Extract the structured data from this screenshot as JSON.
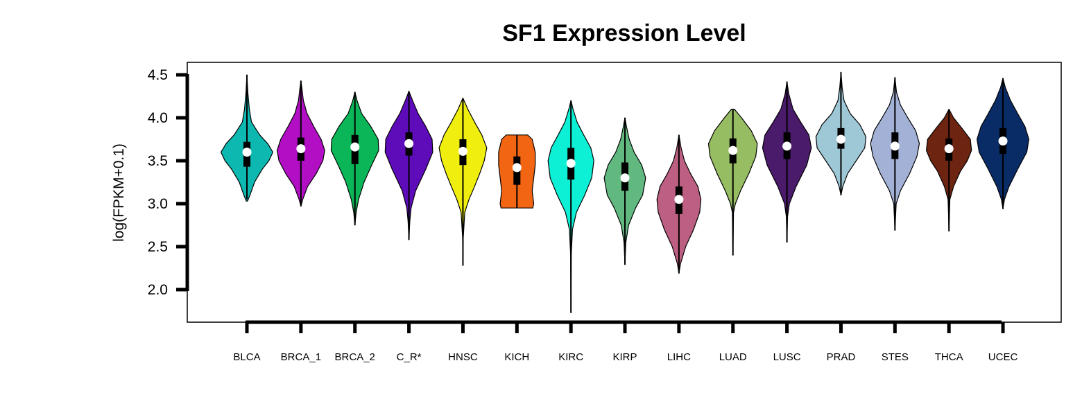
{
  "chart_data": {
    "type": "violin",
    "title": "SF1 Expression Level",
    "xlabel": "",
    "ylabel": "log(FPKM+0.1)",
    "ylim": [
      1.6,
      4.65
    ],
    "yticks": [
      "2.0",
      "2.5",
      "3.0",
      "3.5",
      "4.0",
      "4.5"
    ],
    "grid": false,
    "legend": "none",
    "categories": [
      "BLCA",
      "BRCA_1",
      "BRCA_2",
      "C_R*",
      "HNSC",
      "KICH",
      "KIRC",
      "KIRP",
      "LIHC",
      "LUAD",
      "LUSC",
      "PRAD",
      "STES",
      "THCA",
      "UCEC"
    ],
    "series": [
      {
        "color": "#0cb8b0",
        "min": 3.03,
        "max": 4.5,
        "q1": 3.43,
        "median": 3.6,
        "q3": 3.72,
        "whisker_low": 3.05,
        "whisker_high": 4.5,
        "density": [
          [
            3.03,
            0.02
          ],
          [
            3.1,
            0.1
          ],
          [
            3.25,
            0.25
          ],
          [
            3.4,
            0.5
          ],
          [
            3.5,
            0.72
          ],
          [
            3.6,
            0.85
          ],
          [
            3.7,
            0.68
          ],
          [
            3.8,
            0.42
          ],
          [
            3.95,
            0.15
          ],
          [
            4.1,
            0.08
          ],
          [
            4.3,
            0.03
          ],
          [
            4.5,
            0.0
          ]
        ]
      },
      {
        "color": "#b20fc5",
        "min": 2.97,
        "max": 4.43,
        "q1": 3.5,
        "median": 3.64,
        "q3": 3.77,
        "whisker_low": 2.97,
        "whisker_high": 4.43,
        "density": [
          [
            2.97,
            0.0
          ],
          [
            3.05,
            0.06
          ],
          [
            3.2,
            0.22
          ],
          [
            3.35,
            0.5
          ],
          [
            3.5,
            0.72
          ],
          [
            3.62,
            0.78
          ],
          [
            3.75,
            0.66
          ],
          [
            3.9,
            0.42
          ],
          [
            4.05,
            0.2
          ],
          [
            4.2,
            0.08
          ],
          [
            4.35,
            0.03
          ],
          [
            4.43,
            0.0
          ]
        ]
      },
      {
        "color": "#0bb658",
        "min": 2.75,
        "max": 4.3,
        "q1": 3.46,
        "median": 3.66,
        "q3": 3.8,
        "whisker_low": 2.75,
        "whisker_high": 4.3,
        "density": [
          [
            2.75,
            0.0
          ],
          [
            2.9,
            0.04
          ],
          [
            3.05,
            0.12
          ],
          [
            3.25,
            0.3
          ],
          [
            3.45,
            0.55
          ],
          [
            3.62,
            0.78
          ],
          [
            3.75,
            0.76
          ],
          [
            3.9,
            0.52
          ],
          [
            4.05,
            0.22
          ],
          [
            4.2,
            0.07
          ],
          [
            4.3,
            0.0
          ]
        ]
      },
      {
        "color": "#5e0cba",
        "min": 2.58,
        "max": 4.31,
        "q1": 3.56,
        "median": 3.7,
        "q3": 3.83,
        "whisker_low": 2.58,
        "whisker_high": 4.31,
        "density": [
          [
            2.58,
            0.0
          ],
          [
            2.8,
            0.03
          ],
          [
            2.95,
            0.07
          ],
          [
            3.15,
            0.22
          ],
          [
            3.4,
            0.55
          ],
          [
            3.6,
            0.78
          ],
          [
            3.75,
            0.76
          ],
          [
            3.9,
            0.55
          ],
          [
            4.05,
            0.3
          ],
          [
            4.2,
            0.12
          ],
          [
            4.31,
            0.0
          ]
        ]
      },
      {
        "color": "#f0ee0e",
        "min": 2.28,
        "max": 4.23,
        "q1": 3.45,
        "median": 3.61,
        "q3": 3.75,
        "whisker_low": 2.28,
        "whisker_high": 4.23,
        "density": [
          [
            2.28,
            0.0
          ],
          [
            2.6,
            0.01
          ],
          [
            2.9,
            0.06
          ],
          [
            3.05,
            0.2
          ],
          [
            3.2,
            0.38
          ],
          [
            3.35,
            0.55
          ],
          [
            3.5,
            0.7
          ],
          [
            3.65,
            0.78
          ],
          [
            3.8,
            0.62
          ],
          [
            3.95,
            0.38
          ],
          [
            4.1,
            0.16
          ],
          [
            4.23,
            0.0
          ]
        ]
      },
      {
        "color": "#f26512",
        "min": 2.95,
        "max": 3.8,
        "q1": 3.22,
        "median": 3.42,
        "q3": 3.55,
        "whisker_low": 2.95,
        "whisker_high": 3.8,
        "density": [
          [
            2.95,
            0.52
          ],
          [
            3.0,
            0.55
          ],
          [
            3.15,
            0.5
          ],
          [
            3.3,
            0.55
          ],
          [
            3.45,
            0.6
          ],
          [
            3.6,
            0.6
          ],
          [
            3.75,
            0.5
          ],
          [
            3.8,
            0.35
          ]
        ]
      },
      {
        "color": "#0ef0d6",
        "min": 1.73,
        "max": 4.2,
        "q1": 3.28,
        "median": 3.47,
        "q3": 3.65,
        "whisker_low": 1.73,
        "whisker_high": 4.2,
        "density": [
          [
            1.73,
            0.0
          ],
          [
            2.4,
            0.01
          ],
          [
            2.7,
            0.05
          ],
          [
            2.9,
            0.18
          ],
          [
            3.1,
            0.45
          ],
          [
            3.3,
            0.68
          ],
          [
            3.5,
            0.75
          ],
          [
            3.65,
            0.65
          ],
          [
            3.8,
            0.42
          ],
          [
            3.95,
            0.2
          ],
          [
            4.1,
            0.07
          ],
          [
            4.2,
            0.0
          ]
        ]
      },
      {
        "color": "#62b980",
        "min": 2.29,
        "max": 4.0,
        "q1": 3.15,
        "median": 3.3,
        "q3": 3.48,
        "whisker_low": 2.29,
        "whisker_high": 4.0,
        "density": [
          [
            2.29,
            0.0
          ],
          [
            2.55,
            0.03
          ],
          [
            2.75,
            0.12
          ],
          [
            2.95,
            0.35
          ],
          [
            3.1,
            0.58
          ],
          [
            3.3,
            0.68
          ],
          [
            3.45,
            0.55
          ],
          [
            3.6,
            0.3
          ],
          [
            3.75,
            0.14
          ],
          [
            3.9,
            0.05
          ],
          [
            4.0,
            0.0
          ]
        ]
      },
      {
        "color": "#bc5f82",
        "min": 2.19,
        "max": 3.8,
        "q1": 2.88,
        "median": 3.05,
        "q3": 3.2,
        "whisker_low": 2.19,
        "whisker_high": 3.8,
        "density": [
          [
            2.19,
            0.0
          ],
          [
            2.3,
            0.05
          ],
          [
            2.5,
            0.22
          ],
          [
            2.7,
            0.48
          ],
          [
            2.9,
            0.68
          ],
          [
            3.05,
            0.72
          ],
          [
            3.2,
            0.62
          ],
          [
            3.35,
            0.38
          ],
          [
            3.5,
            0.18
          ],
          [
            3.65,
            0.07
          ],
          [
            3.8,
            0.0
          ]
        ]
      },
      {
        "color": "#97bd62",
        "min": 2.4,
        "max": 4.1,
        "q1": 3.47,
        "median": 3.62,
        "q3": 3.76,
        "whisker_low": 2.4,
        "whisker_high": 4.1,
        "density": [
          [
            2.4,
            0.0
          ],
          [
            2.9,
            0.02
          ],
          [
            3.0,
            0.08
          ],
          [
            3.15,
            0.25
          ],
          [
            3.35,
            0.52
          ],
          [
            3.55,
            0.75
          ],
          [
            3.7,
            0.8
          ],
          [
            3.85,
            0.6
          ],
          [
            4.0,
            0.28
          ],
          [
            4.1,
            0.05
          ]
        ]
      },
      {
        "color": "#4a1a6b",
        "min": 2.55,
        "max": 4.42,
        "q1": 3.52,
        "median": 3.67,
        "q3": 3.83,
        "whisker_low": 2.55,
        "whisker_high": 4.42,
        "density": [
          [
            2.55,
            0.0
          ],
          [
            2.85,
            0.02
          ],
          [
            3.0,
            0.08
          ],
          [
            3.2,
            0.3
          ],
          [
            3.45,
            0.65
          ],
          [
            3.65,
            0.8
          ],
          [
            3.8,
            0.72
          ],
          [
            3.95,
            0.45
          ],
          [
            4.1,
            0.2
          ],
          [
            4.28,
            0.06
          ],
          [
            4.42,
            0.0
          ]
        ]
      },
      {
        "color": "#9ec8d6",
        "min": 3.1,
        "max": 4.53,
        "q1": 3.64,
        "median": 3.75,
        "q3": 3.88,
        "whisker_low": 3.1,
        "whisker_high": 4.53,
        "density": [
          [
            3.1,
            0.0
          ],
          [
            3.2,
            0.06
          ],
          [
            3.35,
            0.22
          ],
          [
            3.5,
            0.5
          ],
          [
            3.65,
            0.78
          ],
          [
            3.78,
            0.82
          ],
          [
            3.92,
            0.62
          ],
          [
            4.05,
            0.3
          ],
          [
            4.2,
            0.1
          ],
          [
            4.35,
            0.04
          ],
          [
            4.53,
            0.0
          ]
        ]
      },
      {
        "color": "#a3b1d6",
        "min": 2.69,
        "max": 4.47,
        "q1": 3.52,
        "median": 3.67,
        "q3": 3.83,
        "whisker_low": 2.69,
        "whisker_high": 4.47,
        "density": [
          [
            2.69,
            0.0
          ],
          [
            3.0,
            0.04
          ],
          [
            3.15,
            0.18
          ],
          [
            3.35,
            0.48
          ],
          [
            3.55,
            0.72
          ],
          [
            3.7,
            0.8
          ],
          [
            3.85,
            0.68
          ],
          [
            4.0,
            0.42
          ],
          [
            4.15,
            0.18
          ],
          [
            4.3,
            0.05
          ],
          [
            4.47,
            0.0
          ]
        ]
      },
      {
        "color": "#6d2410",
        "min": 2.68,
        "max": 4.1,
        "q1": 3.5,
        "median": 3.64,
        "q3": 3.76,
        "whisker_low": 2.68,
        "whisker_high": 4.1,
        "density": [
          [
            2.68,
            0.0
          ],
          [
            3.05,
            0.03
          ],
          [
            3.2,
            0.15
          ],
          [
            3.38,
            0.38
          ],
          [
            3.5,
            0.6
          ],
          [
            3.62,
            0.74
          ],
          [
            3.75,
            0.7
          ],
          [
            3.88,
            0.42
          ],
          [
            4.0,
            0.15
          ],
          [
            4.1,
            0.0
          ]
        ]
      },
      {
        "color": "#0a2c66",
        "min": 2.94,
        "max": 4.46,
        "q1": 3.58,
        "median": 3.73,
        "q3": 3.88,
        "whisker_low": 2.94,
        "whisker_high": 4.46,
        "density": [
          [
            2.94,
            0.0
          ],
          [
            3.05,
            0.05
          ],
          [
            3.2,
            0.2
          ],
          [
            3.4,
            0.48
          ],
          [
            3.6,
            0.78
          ],
          [
            3.75,
            0.85
          ],
          [
            3.9,
            0.72
          ],
          [
            4.05,
            0.48
          ],
          [
            4.2,
            0.25
          ],
          [
            4.35,
            0.08
          ],
          [
            4.46,
            0.0
          ]
        ]
      }
    ]
  }
}
